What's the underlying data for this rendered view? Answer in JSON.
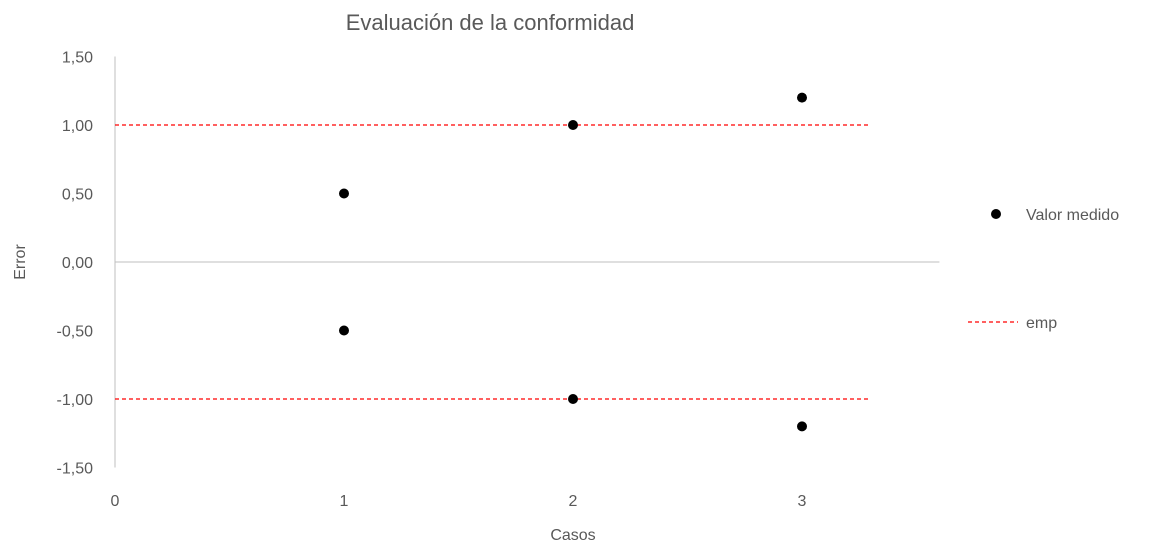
{
  "chart_data": {
    "type": "scatter",
    "title": "Evaluación de la conformidad",
    "xlabel": "Casos",
    "ylabel": "Error",
    "xlim": [
      0,
      3.6
    ],
    "ylim": [
      -1.5,
      1.5
    ],
    "x_ticks": [
      "0",
      "1",
      "2",
      "3"
    ],
    "y_ticks": [
      "1,50",
      "1,00",
      "0,50",
      "0,00",
      "-0,50",
      "-1,00",
      "-1,50"
    ],
    "series": [
      {
        "name": "Valor medido",
        "marker": "circle",
        "color": "#000000",
        "points": [
          {
            "x": 1,
            "y": 0.5
          },
          {
            "x": 1,
            "y": -0.5
          },
          {
            "x": 2,
            "y": 1.0
          },
          {
            "x": 2,
            "y": -1.0
          },
          {
            "x": 3,
            "y": 1.2
          },
          {
            "x": 3,
            "y": -1.2
          }
        ]
      },
      {
        "name": "emp",
        "style": "dashed",
        "color": "#ff0000",
        "lines": [
          {
            "y": 1.0,
            "x_from": 0,
            "x_to": 3.3
          },
          {
            "y": -1.0,
            "x_from": 0,
            "x_to": 3.3
          }
        ]
      }
    ],
    "legend_position": "right",
    "grid": false
  }
}
